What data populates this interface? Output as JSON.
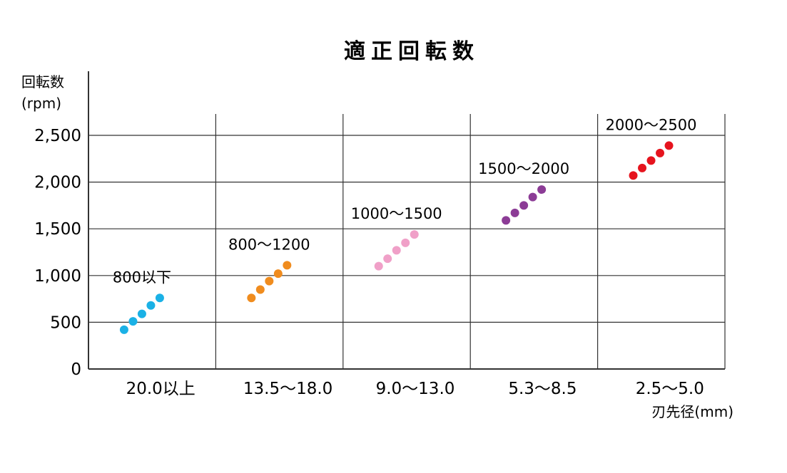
{
  "chart_data": {
    "type": "scatter",
    "title": "適正回転数",
    "ylabel_line1": "回転数",
    "ylabel_line2": "(rpm)",
    "xlabel": "刃先径(mm)",
    "ylim": [
      0,
      2500
    ],
    "yticks": [
      0,
      500,
      1000,
      1500,
      2000,
      2500
    ],
    "ytick_labels": [
      "0",
      "500",
      "1,000",
      "1,500",
      "2,000",
      "2,500"
    ],
    "grid": true,
    "categories": [
      "20.0以上",
      "13.5〜18.0",
      "9.0〜13.0",
      "5.3〜8.5",
      "2.5〜5.0"
    ],
    "groups": [
      {
        "range_label": "800以下",
        "color": "#1ab1e6",
        "values": [
          420,
          510,
          590,
          680,
          760
        ]
      },
      {
        "range_label": "800〜1200",
        "color": "#f08c1e",
        "values": [
          760,
          850,
          940,
          1020,
          1110
        ]
      },
      {
        "range_label": "1000〜1500",
        "color": "#f0a0c8",
        "values": [
          1100,
          1180,
          1270,
          1350,
          1440
        ]
      },
      {
        "range_label": "1500〜2000",
        "color": "#8c3c96",
        "values": [
          1590,
          1670,
          1750,
          1840,
          1920
        ]
      },
      {
        "range_label": "2000〜2500",
        "color": "#e6141e",
        "values": [
          2070,
          2150,
          2230,
          2310,
          2390
        ]
      }
    ]
  }
}
